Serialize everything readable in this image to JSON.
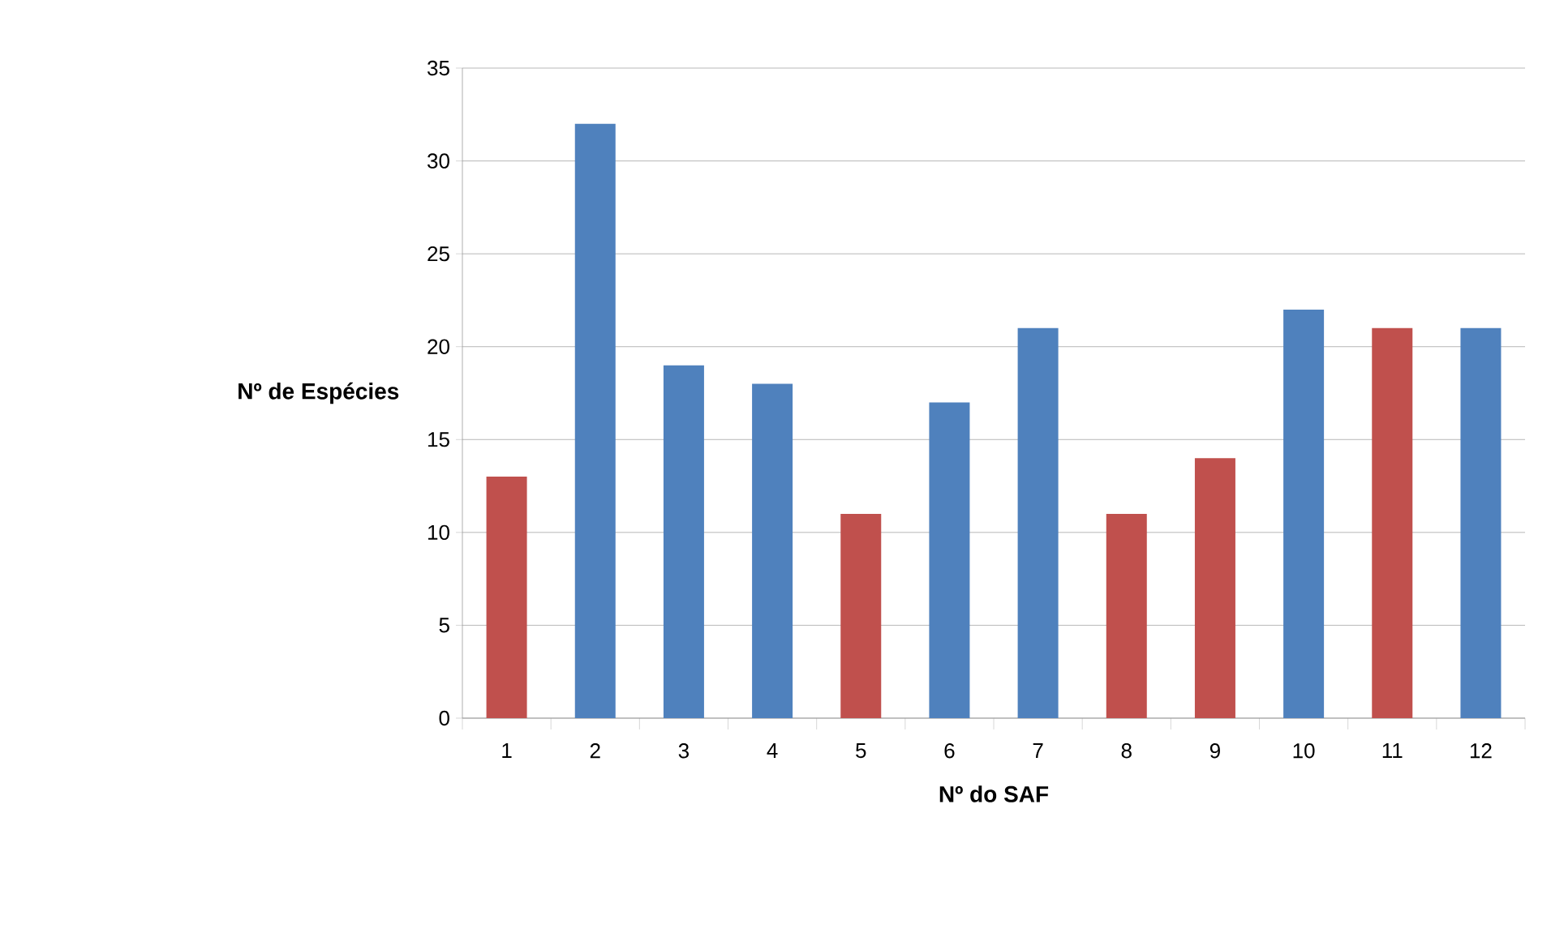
{
  "chart_data": {
    "type": "bar",
    "xlabel": "Nº do SAF",
    "ylabel": "Nº de Espécies",
    "categories": [
      "1",
      "2",
      "3",
      "4",
      "5",
      "6",
      "7",
      "8",
      "9",
      "10",
      "11",
      "12"
    ],
    "values": [
      13,
      32,
      19,
      18,
      11,
      17,
      21,
      11,
      14,
      22,
      21,
      21
    ],
    "colors": [
      "#c0504d",
      "#4f81bd",
      "#4f81bd",
      "#4f81bd",
      "#c0504d",
      "#4f81bd",
      "#4f81bd",
      "#c0504d",
      "#c0504d",
      "#4f81bd",
      "#c0504d",
      "#4f81bd"
    ],
    "ylim": [
      0,
      35
    ],
    "yticks": [
      0,
      5,
      10,
      15,
      20,
      25,
      30,
      35
    ],
    "grid": "y"
  }
}
